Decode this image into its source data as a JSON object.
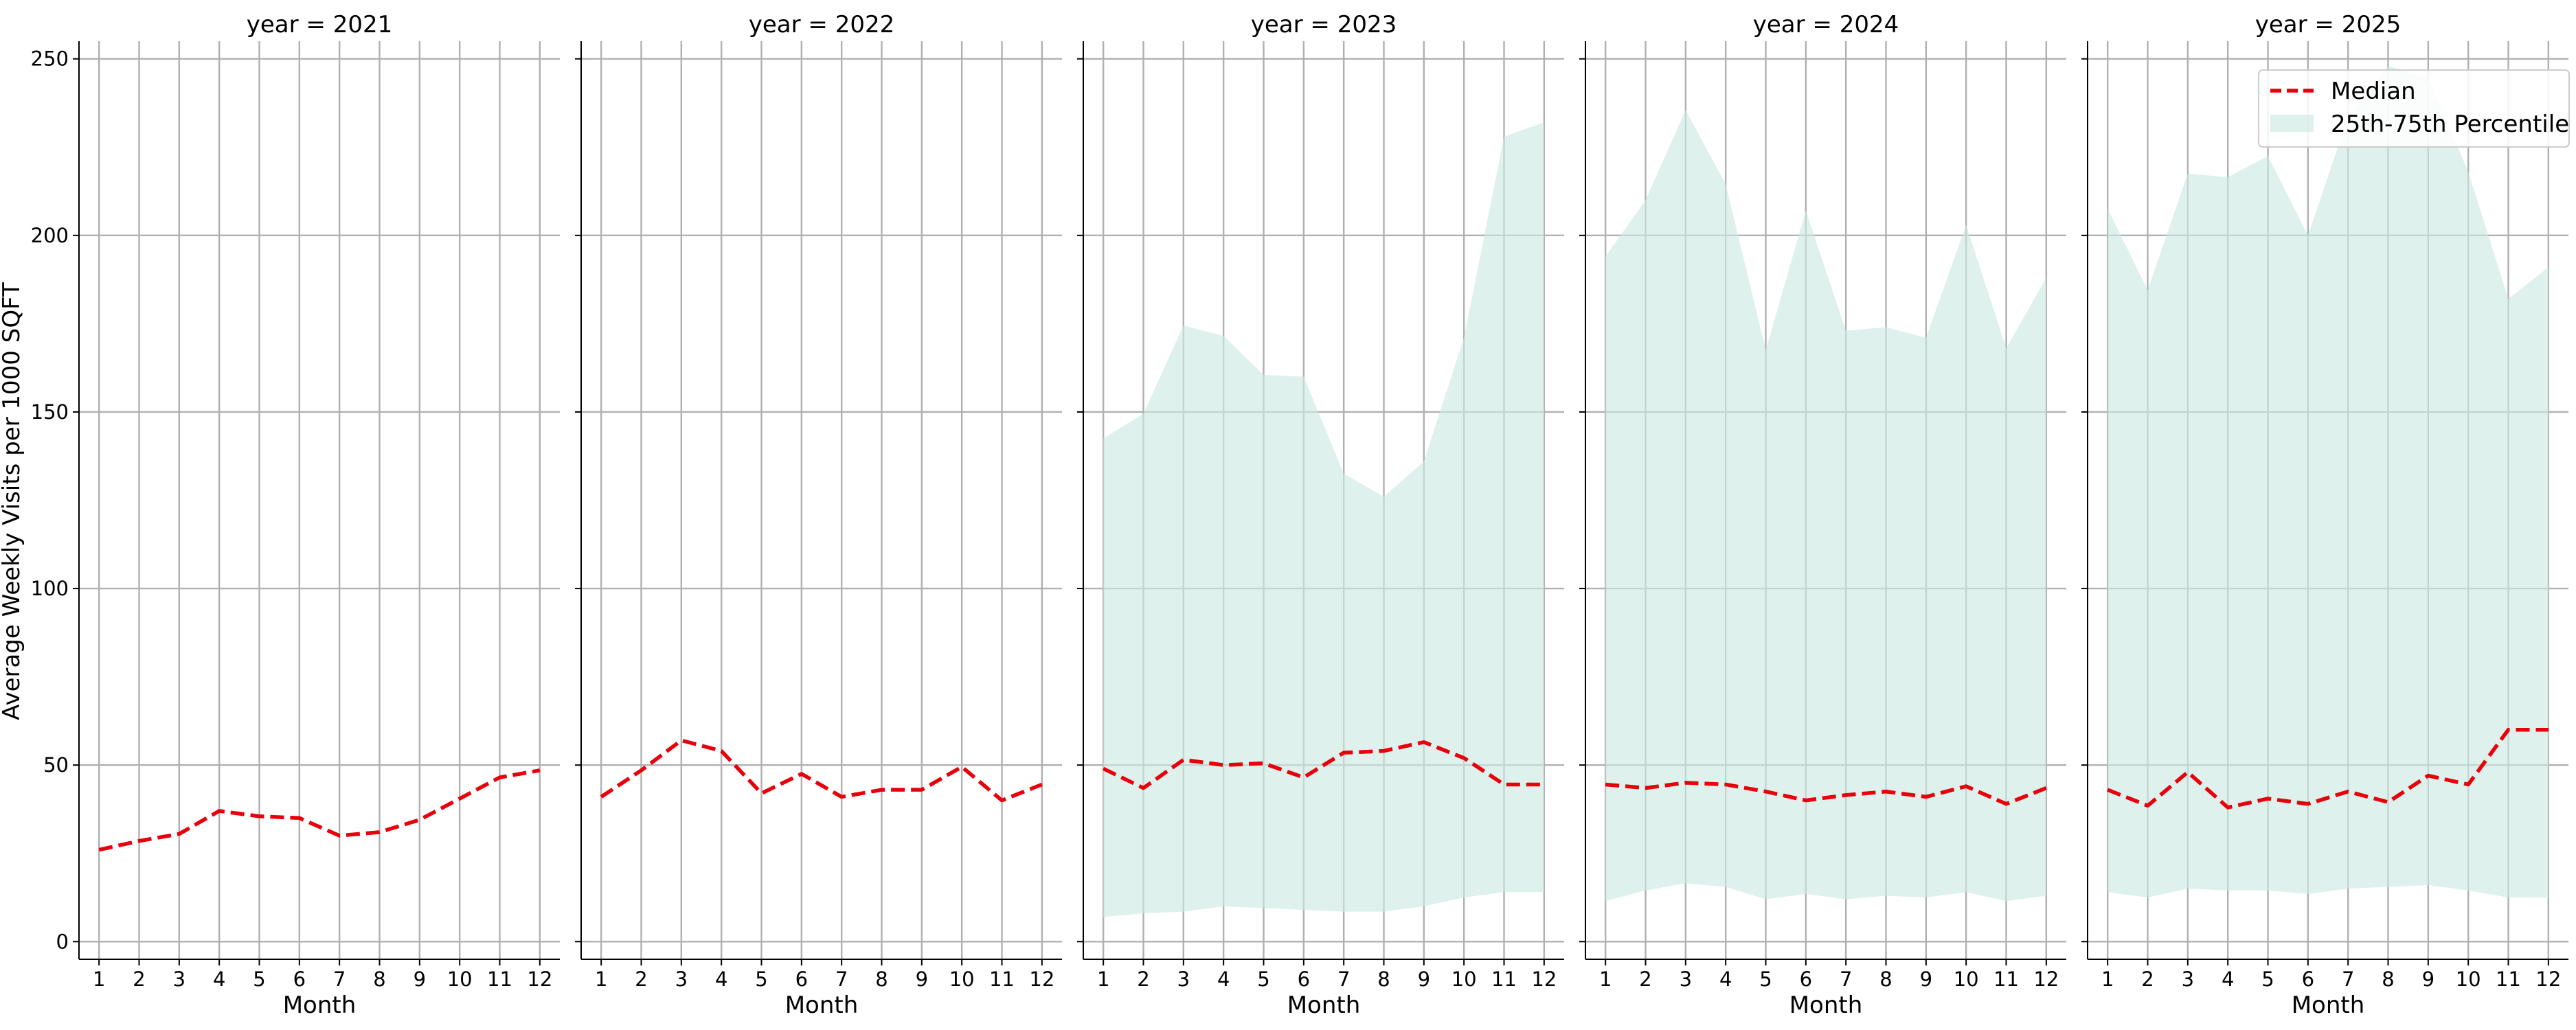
{
  "chart_data": {
    "type": "line",
    "layout": "facet-columns",
    "facet_title_prefix": "year = ",
    "xlabel": "Month",
    "ylabel": "Average Weekly Visits per 1000 SQFT",
    "ylim": [
      -5,
      255
    ],
    "xlim": [
      0.5,
      12.5
    ],
    "yticks": [
      0,
      50,
      100,
      150,
      200,
      250
    ],
    "xticks": [
      1,
      2,
      3,
      4,
      5,
      6,
      7,
      8,
      9,
      10,
      11,
      12
    ],
    "grid": true,
    "legend": {
      "position": "top-right",
      "entries": [
        "Median",
        "25th-75th Percentile"
      ]
    },
    "colors": {
      "median": "#e8000b",
      "band": "#cdeae2"
    },
    "x": [
      1,
      2,
      3,
      4,
      5,
      6,
      7,
      8,
      9,
      10,
      11,
      12
    ],
    "facets": [
      {
        "year": "2021",
        "title": "year = 2021",
        "median": [
          26,
          28.5,
          30.5,
          37,
          35.5,
          35,
          30,
          31,
          34.5,
          40.5,
          46.5,
          48.5
        ],
        "p25": null,
        "p75": null
      },
      {
        "year": "2022",
        "title": "year = 2022",
        "median": [
          41,
          48.5,
          57,
          54,
          42,
          47.5,
          41,
          43,
          43,
          49.5,
          40,
          44.5
        ],
        "p25": null,
        "p75": null
      },
      {
        "year": "2023",
        "title": "year = 2023",
        "median": [
          49,
          43.5,
          51.5,
          50,
          50.5,
          46.5,
          53.5,
          54,
          56.5,
          52,
          44.5,
          44.5
        ],
        "p25": [
          7,
          8,
          8.5,
          10,
          9.5,
          9,
          8.5,
          8.5,
          10,
          12.5,
          14,
          14
        ],
        "p75": [
          142.5,
          149.5,
          174.5,
          171.5,
          160.5,
          160,
          132.5,
          126,
          136,
          171,
          228,
          232
        ]
      },
      {
        "year": "2024",
        "title": "year = 2024",
        "median": [
          44.5,
          43.5,
          45,
          44.5,
          42.5,
          40,
          41.5,
          42.5,
          41,
          44,
          39,
          43.5
        ],
        "p25": [
          11.5,
          14.5,
          16.5,
          15.5,
          12,
          13.5,
          12,
          13,
          12.5,
          14,
          11.5,
          13
        ],
        "p75": [
          194,
          210,
          235.5,
          214.5,
          167.5,
          207,
          173,
          174,
          171,
          203,
          168,
          188
        ]
      },
      {
        "year": "2025",
        "title": "year = 2025",
        "median": [
          43,
          38.5,
          48,
          38,
          40.5,
          39,
          42.5,
          39.5,
          47,
          44.5,
          60,
          60
        ],
        "p25": [
          14,
          12.5,
          15,
          14.5,
          14.5,
          13.5,
          15,
          15.5,
          16,
          14.5,
          12.5,
          12.5
        ],
        "p75": [
          207.5,
          184.5,
          217.5,
          216.5,
          222.5,
          200,
          233.5,
          248,
          244.5,
          218,
          182,
          191
        ]
      }
    ]
  }
}
